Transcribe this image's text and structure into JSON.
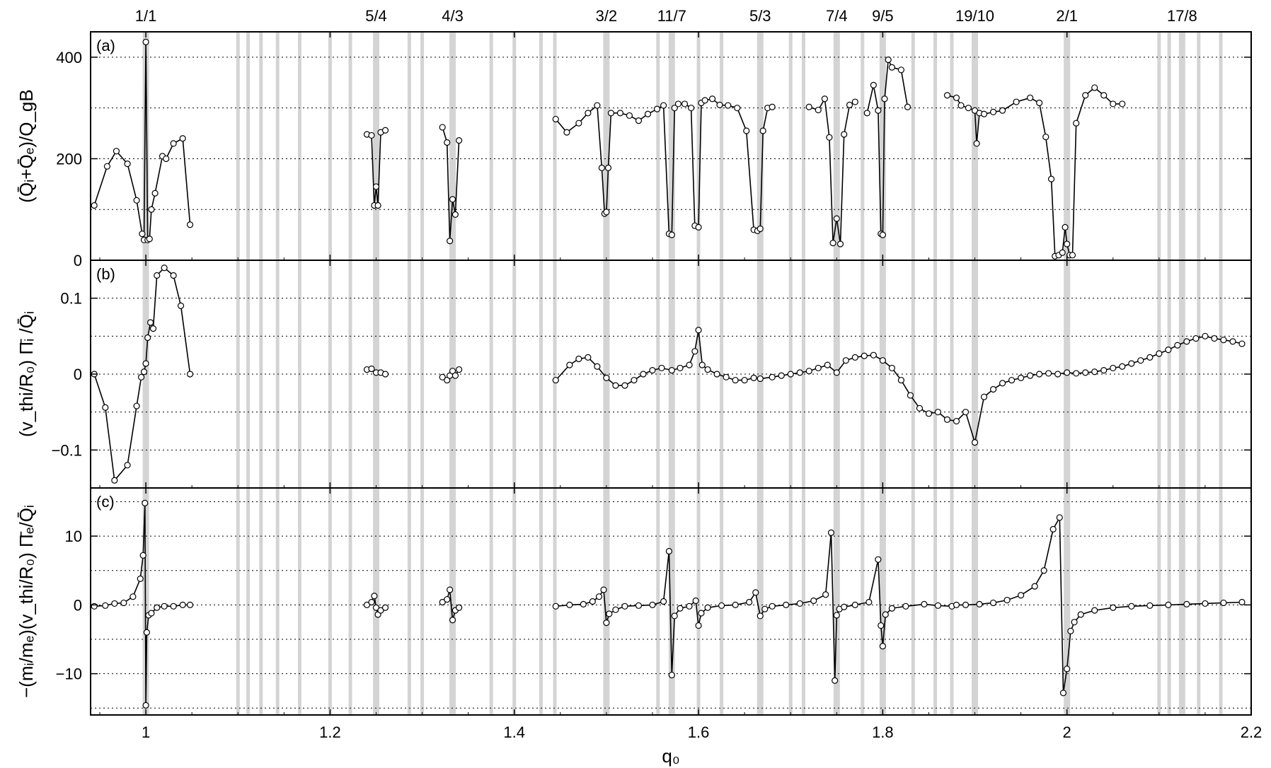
{
  "chart_data": {
    "type": "line",
    "xlabel": "q₀",
    "x_ticks": [
      "1",
      "1.2",
      "1.4",
      "1.6",
      "1.8",
      "2",
      "2.2"
    ],
    "xlim": [
      0.94,
      2.2
    ],
    "rational_labels": [
      {
        "label": "1/1",
        "q": 1.0
      },
      {
        "label": "5/4",
        "q": 1.25
      },
      {
        "label": "4/3",
        "q": 1.333
      },
      {
        "label": "3/2",
        "q": 1.5
      },
      {
        "label": "11/7",
        "q": 1.571
      },
      {
        "label": "5/3",
        "q": 1.667
      },
      {
        "label": "7/4",
        "q": 1.75
      },
      {
        "label": "9/5",
        "q": 1.8
      },
      {
        "label": "19/10",
        "q": 1.9
      },
      {
        "label": "2/1",
        "q": 2.0
      },
      {
        "label": "17/8",
        "q": 2.125
      }
    ],
    "rational_lines": [
      1.0,
      1.1,
      1.111,
      1.125,
      1.143,
      1.167,
      1.2,
      1.222,
      1.25,
      1.286,
      1.3,
      1.333,
      1.375,
      1.4,
      1.429,
      1.444,
      1.5,
      1.556,
      1.571,
      1.6,
      1.625,
      1.667,
      1.7,
      1.714,
      1.75,
      1.778,
      1.8,
      1.833,
      1.857,
      1.875,
      1.9,
      2.0,
      2.1,
      2.111,
      2.125,
      2.143,
      2.167
    ],
    "panels": [
      {
        "tag": "(a)",
        "ylabel": "(Q̄ᵢ+Q̄ₑ)/Q_gB",
        "ylim": [
          0,
          450
        ],
        "y_ticks": [
          0,
          200,
          400
        ],
        "grid_y": [
          100,
          200,
          300,
          400
        ],
        "series": [
          {
            "x": [
              0.944,
              0.958,
              0.968,
              0.98,
              0.99,
              0.996,
              0.998,
              1.0,
              1.002,
              1.004,
              1.006,
              1.01,
              1.018,
              1.022,
              1.03,
              1.04,
              1.048
            ],
            "y": [
              108,
              185,
              215,
              190,
              118,
              52,
              40,
              430,
              40,
              42,
              100,
              132,
              205,
              200,
              230,
              240,
              70
            ]
          },
          {
            "x": [
              1.24,
              1.245,
              1.248,
              1.25,
              1.252,
              1.255,
              1.26
            ],
            "y": [
              248,
              246,
              108,
              145,
              108,
              252,
              256
            ]
          },
          {
            "x": [
              1.322,
              1.327,
              1.33,
              1.333,
              1.336,
              1.34
            ],
            "y": [
              262,
              232,
              38,
              120,
              90,
              236
            ]
          },
          {
            "x": [
              1.445,
              1.457,
              1.47,
              1.48,
              1.49,
              1.495,
              1.498,
              1.5,
              1.502,
              1.505,
              1.515,
              1.525,
              1.535,
              1.545,
              1.555,
              1.562,
              1.568,
              1.571,
              1.574,
              1.578,
              1.585,
              1.592,
              1.596,
              1.6,
              1.603,
              1.607,
              1.615,
              1.623,
              1.632,
              1.642,
              1.652,
              1.66,
              1.664,
              1.667,
              1.67,
              1.675,
              1.68
            ],
            "y": [
              278,
              252,
              270,
              290,
              305,
              182,
              92,
              95,
              182,
              290,
              290,
              285,
              275,
              288,
              298,
              305,
              52,
              50,
              300,
              308,
              308,
              300,
              68,
              65,
              310,
              315,
              318,
              306,
              305,
              300,
              255,
              60,
              58,
              62,
              255,
              300,
              302
            ]
          },
          {
            "x": [
              1.72,
              1.73,
              1.737,
              1.742,
              1.746,
              1.75,
              1.754,
              1.758,
              1.764,
              1.77
            ],
            "y": [
              302,
              296,
              318,
              242,
              34,
              82,
              32,
              248,
              306,
              312
            ]
          },
          {
            "x": [
              1.783,
              1.79,
              1.795,
              1.798,
              1.8,
              1.802,
              1.806,
              1.81,
              1.82,
              1.827
            ],
            "y": [
              290,
              345,
              295,
              52,
              50,
              318,
              395,
              380,
              375,
              302
            ]
          },
          {
            "x": [
              1.87,
              1.88,
              1.885,
              1.893,
              1.9,
              1.902,
              1.905,
              1.91,
              1.92,
              1.93,
              1.945,
              1.96,
              1.97,
              1.977,
              1.983,
              1.987,
              1.991,
              1.995,
              1.998,
              2.0,
              2.003,
              2.006,
              2.01,
              2.02,
              2.03,
              2.04,
              2.05,
              2.06
            ],
            "y": [
              325,
              320,
              305,
              300,
              295,
              230,
              290,
              288,
              292,
              295,
              312,
              320,
              310,
              243,
              160,
              8,
              10,
              15,
              65,
              32,
              10,
              10,
              270,
              325,
              340,
              325,
              308,
              308
            ]
          }
        ]
      },
      {
        "tag": "(b)",
        "ylabel": "(v_thi/R₀) Π̄ᵢ /Q̄ᵢ",
        "ylim": [
          -0.15,
          0.15
        ],
        "y_ticks": [
          -0.1,
          0,
          0.1
        ],
        "grid_y": [
          -0.15,
          -0.1,
          -0.05,
          0,
          0.05,
          0.1
        ],
        "series": [
          {
            "x": [
              0.944,
              0.956,
              0.966,
              0.98,
              0.99,
              0.995,
              0.998,
              1.0,
              1.002,
              1.005,
              1.008,
              1.012,
              1.02,
              1.03,
              1.038,
              1.048
            ],
            "y": [
              0,
              -0.044,
              -0.14,
              -0.12,
              -0.042,
              -0.004,
              0.003,
              0.014,
              0.048,
              0.068,
              0.06,
              0.13,
              0.14,
              0.13,
              0.09,
              0
            ]
          },
          {
            "x": [
              1.24,
              1.245,
              1.25,
              1.255,
              1.26
            ],
            "y": [
              0.006,
              0.007,
              0.002,
              0.002,
              0
            ]
          },
          {
            "x": [
              1.322,
              1.327,
              1.33,
              1.333,
              1.336,
              1.34
            ],
            "y": [
              -0.004,
              -0.008,
              -0.002,
              0.004,
              -0.002,
              0.006
            ]
          },
          {
            "x": [
              1.445,
              1.46,
              1.47,
              1.48,
              1.49,
              1.5,
              1.51,
              1.52,
              1.53,
              1.54,
              1.55,
              1.56,
              1.571,
              1.58,
              1.59,
              1.596,
              1.6,
              1.604,
              1.61,
              1.62,
              1.63,
              1.64,
              1.65,
              1.66,
              1.667,
              1.68,
              1.69,
              1.7,
              1.71,
              1.72,
              1.73,
              1.74,
              1.75,
              1.76,
              1.77,
              1.78,
              1.79,
              1.8,
              1.81,
              1.82,
              1.83,
              1.84,
              1.85,
              1.86,
              1.87,
              1.88,
              1.89,
              1.9,
              1.91,
              1.92,
              1.93,
              1.94,
              1.95,
              1.96,
              1.97,
              1.98,
              1.99,
              2.0,
              2.01,
              2.02,
              2.03,
              2.04,
              2.05,
              2.06,
              2.07,
              2.08,
              2.09,
              2.1,
              2.11,
              2.12,
              2.13,
              2.14,
              2.15,
              2.16,
              2.17,
              2.18,
              2.19
            ],
            "y": [
              -0.008,
              0.012,
              0.02,
              0.022,
              0.01,
              -0.005,
              -0.015,
              -0.015,
              -0.008,
              0,
              0.005,
              0.008,
              0.005,
              0.008,
              0.012,
              0.03,
              0.058,
              0.012,
              0.006,
              0,
              -0.004,
              -0.008,
              -0.008,
              -0.005,
              -0.006,
              -0.004,
              -0.002,
              0,
              0.002,
              0.004,
              0.008,
              0.012,
              0.002,
              0.018,
              0.022,
              0.024,
              0.025,
              0.018,
              0.008,
              -0.008,
              -0.028,
              -0.045,
              -0.052,
              -0.05,
              -0.06,
              -0.062,
              -0.05,
              -0.09,
              -0.03,
              -0.02,
              -0.012,
              -0.008,
              -0.005,
              -0.002,
              0,
              0.001,
              0,
              0.002,
              0.001,
              0.002,
              0.003,
              0.005,
              0.008,
              0.01,
              0.014,
              0.018,
              0.022,
              0.027,
              0.032,
              0.038,
              0.043,
              0.047,
              0.05,
              0.047,
              0.045,
              0.043,
              0.04
            ]
          }
        ]
      },
      {
        "tag": "(c)",
        "ylabel": "−(mᵢ/mₑ)(v_thi/R₀) Π̄ₑ/Q̄ᵢ",
        "ylim": [
          -16,
          17
        ],
        "y_ticks": [
          -10,
          0,
          10
        ],
        "grid_y": [
          -15,
          -10,
          -5,
          0,
          5,
          10,
          15
        ],
        "series": [
          {
            "x": [
              0.944,
              0.956,
              0.966,
              0.976,
              0.986,
              0.994,
              0.997,
              0.999,
              1.0,
              1.001,
              1.003,
              1.006,
              1.012,
              1.02,
              1.03,
              1.04,
              1.048
            ],
            "y": [
              -0.2,
              -0.1,
              0.2,
              0.3,
              1.2,
              3.8,
              7.2,
              14.8,
              -14.6,
              -4,
              -1.5,
              -1.2,
              -0.4,
              -0.2,
              -0.2,
              0,
              0
            ]
          },
          {
            "x": [
              1.24,
              1.245,
              1.248,
              1.25,
              1.252,
              1.255,
              1.26
            ],
            "y": [
              0,
              0.4,
              1.3,
              -0.4,
              -1.4,
              -0.8,
              -0.4
            ]
          },
          {
            "x": [
              1.322,
              1.327,
              1.33,
              1.333,
              1.336,
              1.34
            ],
            "y": [
              0.4,
              0.8,
              2.2,
              -2.2,
              -0.8,
              -0.4
            ]
          },
          {
            "x": [
              1.445,
              1.46,
              1.475,
              1.485,
              1.492,
              1.497,
              1.5,
              1.503,
              1.51,
              1.52,
              1.535,
              1.55,
              1.562,
              1.568,
              1.571,
              1.574,
              1.58,
              1.59,
              1.597,
              1.6,
              1.603,
              1.61,
              1.625,
              1.64,
              1.655,
              1.662,
              1.667,
              1.672,
              1.68,
              1.695,
              1.71,
              1.725,
              1.738,
              1.744,
              1.748,
              1.75,
              1.753,
              1.758,
              1.77,
              1.785,
              1.795,
              1.798,
              1.8,
              1.803,
              1.81,
              1.825,
              1.845,
              1.86,
              1.875,
              1.88,
              1.89,
              1.905,
              1.92,
              1.935,
              1.95,
              1.965,
              1.975,
              1.985,
              1.992,
              1.996,
              2.0,
              2.004,
              2.008,
              2.015,
              2.03,
              2.05,
              2.07,
              2.09,
              2.11,
              2.13,
              2.15,
              2.17,
              2.19
            ],
            "y": [
              -0.2,
              0,
              0.1,
              0.5,
              1.2,
              2.2,
              -2.6,
              -1.3,
              -0.7,
              -0.2,
              -0.1,
              0,
              0.5,
              7.8,
              -10.2,
              -1.6,
              -0.5,
              -0.2,
              0.6,
              -3.0,
              -1.2,
              -0.4,
              -0.1,
              0,
              0.4,
              1.8,
              -1.6,
              -0.6,
              -0.2,
              0,
              0.2,
              0.6,
              1.5,
              10.5,
              -11,
              -1.5,
              -0.6,
              -0.3,
              0,
              0.4,
              6.6,
              -3,
              -6,
              -1.4,
              -0.5,
              -0.2,
              0.1,
              -0.1,
              -0.2,
              0,
              0,
              0.1,
              0.3,
              0.7,
              1.4,
              2.7,
              5,
              11,
              12.7,
              -12.8,
              -9.3,
              -3.8,
              -2.5,
              -1.4,
              -0.8,
              -0.4,
              -0.2,
              -0.1,
              0,
              0.1,
              0.2,
              0.3,
              0.4
            ]
          }
        ]
      }
    ]
  }
}
